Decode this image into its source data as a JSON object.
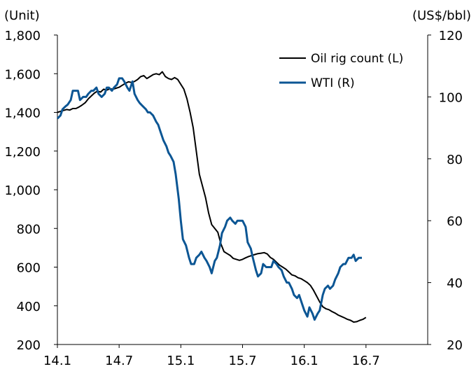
{
  "chart_data": {
    "type": "line",
    "left_axis_unit": "(Unit)",
    "right_axis_unit": "(US$/bbl)",
    "x_ticks": [
      "14.1",
      "14.7",
      "15.1",
      "15.7",
      "16.1",
      "16.7"
    ],
    "x_tick_months": [
      0,
      6,
      12,
      18,
      24,
      30
    ],
    "xlim_months": [
      0,
      36
    ],
    "y_left": {
      "lim": [
        200,
        1800
      ],
      "ticks": [
        "200",
        "400",
        "600",
        "800",
        "1,000",
        "1,200",
        "1,400",
        "1,600",
        "1,800"
      ],
      "tick_values": [
        200,
        400,
        600,
        800,
        1000,
        1200,
        1400,
        1600,
        1800
      ]
    },
    "y_right": {
      "lim": [
        20,
        120
      ],
      "ticks": [
        "20",
        "40",
        "60",
        "80",
        "100",
        "120"
      ],
      "tick_values": [
        20,
        40,
        60,
        80,
        100,
        120
      ]
    },
    "legend_position": "top-right",
    "series": [
      {
        "name": "Oil rig count (L)",
        "axis": "left",
        "color": "#000000",
        "points": [
          [
            0.0,
            1400
          ],
          [
            0.3,
            1405
          ],
          [
            0.6,
            1410
          ],
          [
            0.9,
            1415
          ],
          [
            1.2,
            1412
          ],
          [
            1.5,
            1420
          ],
          [
            1.8,
            1420
          ],
          [
            2.1,
            1428
          ],
          [
            2.4,
            1438
          ],
          [
            2.7,
            1450
          ],
          [
            3.0,
            1470
          ],
          [
            3.3,
            1485
          ],
          [
            3.6,
            1500
          ],
          [
            3.9,
            1510
          ],
          [
            4.2,
            1505
          ],
          [
            4.5,
            1520
          ],
          [
            4.8,
            1515
          ],
          [
            5.1,
            1522
          ],
          [
            5.4,
            1520
          ],
          [
            5.7,
            1525
          ],
          [
            6.0,
            1530
          ],
          [
            6.3,
            1540
          ],
          [
            6.6,
            1550
          ],
          [
            6.9,
            1558
          ],
          [
            7.2,
            1555
          ],
          [
            7.5,
            1560
          ],
          [
            7.8,
            1570
          ],
          [
            8.1,
            1585
          ],
          [
            8.4,
            1590
          ],
          [
            8.7,
            1575
          ],
          [
            9.0,
            1585
          ],
          [
            9.3,
            1595
          ],
          [
            9.6,
            1600
          ],
          [
            9.9,
            1595
          ],
          [
            10.2,
            1610
          ],
          [
            10.5,
            1585
          ],
          [
            10.8,
            1575
          ],
          [
            11.1,
            1570
          ],
          [
            11.4,
            1580
          ],
          [
            11.7,
            1570
          ],
          [
            12.0,
            1545
          ],
          [
            12.3,
            1520
          ],
          [
            12.6,
            1470
          ],
          [
            12.9,
            1400
          ],
          [
            13.2,
            1320
          ],
          [
            13.5,
            1200
          ],
          [
            13.8,
            1080
          ],
          [
            14.1,
            1020
          ],
          [
            14.4,
            960
          ],
          [
            14.7,
            880
          ],
          [
            15.0,
            820
          ],
          [
            15.3,
            800
          ],
          [
            15.6,
            780
          ],
          [
            15.9,
            720
          ],
          [
            16.2,
            680
          ],
          [
            16.5,
            670
          ],
          [
            16.8,
            660
          ],
          [
            17.1,
            645
          ],
          [
            17.4,
            640
          ],
          [
            17.7,
            635
          ],
          [
            18.0,
            640
          ],
          [
            18.3,
            648
          ],
          [
            18.6,
            655
          ],
          [
            18.9,
            660
          ],
          [
            19.2,
            665
          ],
          [
            19.5,
            670
          ],
          [
            19.8,
            672
          ],
          [
            20.1,
            675
          ],
          [
            20.4,
            668
          ],
          [
            20.7,
            650
          ],
          [
            21.0,
            640
          ],
          [
            21.3,
            625
          ],
          [
            21.6,
            610
          ],
          [
            21.9,
            600
          ],
          [
            22.2,
            590
          ],
          [
            22.5,
            575
          ],
          [
            22.8,
            560
          ],
          [
            23.1,
            555
          ],
          [
            23.4,
            545
          ],
          [
            23.7,
            540
          ],
          [
            24.0,
            530
          ],
          [
            24.3,
            520
          ],
          [
            24.6,
            505
          ],
          [
            24.9,
            480
          ],
          [
            25.2,
            450
          ],
          [
            25.5,
            420
          ],
          [
            25.8,
            395
          ],
          [
            26.1,
            385
          ],
          [
            26.4,
            380
          ],
          [
            26.7,
            370
          ],
          [
            27.0,
            362
          ],
          [
            27.3,
            352
          ],
          [
            27.6,
            345
          ],
          [
            27.9,
            338
          ],
          [
            28.2,
            330
          ],
          [
            28.5,
            325
          ],
          [
            28.8,
            316
          ],
          [
            29.1,
            318
          ],
          [
            29.4,
            325
          ],
          [
            29.7,
            330
          ],
          [
            30.0,
            340
          ]
        ]
      },
      {
        "name": "WTI (R)",
        "axis": "right",
        "color": "#0c5694",
        "points": [
          [
            0.0,
            93
          ],
          [
            0.3,
            94
          ],
          [
            0.5,
            96
          ],
          [
            0.8,
            97
          ],
          [
            1.0,
            97.5
          ],
          [
            1.3,
            99
          ],
          [
            1.5,
            102
          ],
          [
            1.8,
            102
          ],
          [
            2.0,
            102
          ],
          [
            2.2,
            99
          ],
          [
            2.5,
            100
          ],
          [
            2.8,
            100
          ],
          [
            3.0,
            101
          ],
          [
            3.3,
            102
          ],
          [
            3.5,
            102
          ],
          [
            3.8,
            103
          ],
          [
            4.0,
            101
          ],
          [
            4.3,
            100
          ],
          [
            4.6,
            101
          ],
          [
            4.8,
            103
          ],
          [
            5.0,
            103
          ],
          [
            5.3,
            102
          ],
          [
            5.5,
            103
          ],
          [
            5.8,
            104
          ],
          [
            6.0,
            106
          ],
          [
            6.3,
            106
          ],
          [
            6.5,
            105
          ],
          [
            6.8,
            103
          ],
          [
            7.0,
            102
          ],
          [
            7.3,
            105
          ],
          [
            7.5,
            101
          ],
          [
            7.8,
            99
          ],
          [
            8.0,
            98
          ],
          [
            8.3,
            97
          ],
          [
            8.6,
            96
          ],
          [
            8.8,
            95
          ],
          [
            9.0,
            95
          ],
          [
            9.3,
            94
          ],
          [
            9.6,
            92
          ],
          [
            9.8,
            91
          ],
          [
            10.0,
            89
          ],
          [
            10.3,
            86
          ],
          [
            10.6,
            84
          ],
          [
            10.8,
            82
          ],
          [
            11.0,
            81
          ],
          [
            11.3,
            79
          ],
          [
            11.5,
            75
          ],
          [
            11.8,
            67
          ],
          [
            12.0,
            60
          ],
          [
            12.2,
            54
          ],
          [
            12.5,
            52
          ],
          [
            12.8,
            48
          ],
          [
            13.0,
            46
          ],
          [
            13.3,
            46
          ],
          [
            13.5,
            48
          ],
          [
            13.8,
            49
          ],
          [
            14.0,
            50
          ],
          [
            14.3,
            48
          ],
          [
            14.5,
            47
          ],
          [
            14.8,
            45
          ],
          [
            15.0,
            43
          ],
          [
            15.3,
            47
          ],
          [
            15.5,
            48
          ],
          [
            15.8,
            52
          ],
          [
            16.0,
            56
          ],
          [
            16.3,
            58
          ],
          [
            16.5,
            60
          ],
          [
            16.8,
            61
          ],
          [
            17.0,
            60
          ],
          [
            17.3,
            59
          ],
          [
            17.5,
            60
          ],
          [
            17.8,
            60
          ],
          [
            18.0,
            60
          ],
          [
            18.3,
            58
          ],
          [
            18.5,
            53
          ],
          [
            18.8,
            51
          ],
          [
            19.0,
            48
          ],
          [
            19.3,
            44
          ],
          [
            19.5,
            42
          ],
          [
            19.8,
            43
          ],
          [
            20.0,
            46
          ],
          [
            20.3,
            45
          ],
          [
            20.5,
            45
          ],
          [
            20.8,
            45
          ],
          [
            21.0,
            47
          ],
          [
            21.3,
            46
          ],
          [
            21.5,
            45
          ],
          [
            21.8,
            44
          ],
          [
            22.0,
            42
          ],
          [
            22.3,
            40
          ],
          [
            22.5,
            40
          ],
          [
            22.8,
            38
          ],
          [
            23.0,
            36
          ],
          [
            23.3,
            35
          ],
          [
            23.5,
            36
          ],
          [
            23.8,
            33
          ],
          [
            24.0,
            31
          ],
          [
            24.3,
            29
          ],
          [
            24.5,
            32
          ],
          [
            24.8,
            30
          ],
          [
            25.0,
            28
          ],
          [
            25.3,
            30
          ],
          [
            25.5,
            31
          ],
          [
            25.8,
            36
          ],
          [
            26.0,
            38
          ],
          [
            26.3,
            39
          ],
          [
            26.5,
            38
          ],
          [
            26.8,
            39
          ],
          [
            27.0,
            41
          ],
          [
            27.3,
            43
          ],
          [
            27.5,
            45
          ],
          [
            27.8,
            46
          ],
          [
            28.0,
            46
          ],
          [
            28.3,
            48
          ],
          [
            28.6,
            48
          ],
          [
            28.8,
            49
          ],
          [
            29.0,
            47
          ],
          [
            29.3,
            48
          ],
          [
            29.6,
            48
          ]
        ]
      }
    ]
  }
}
